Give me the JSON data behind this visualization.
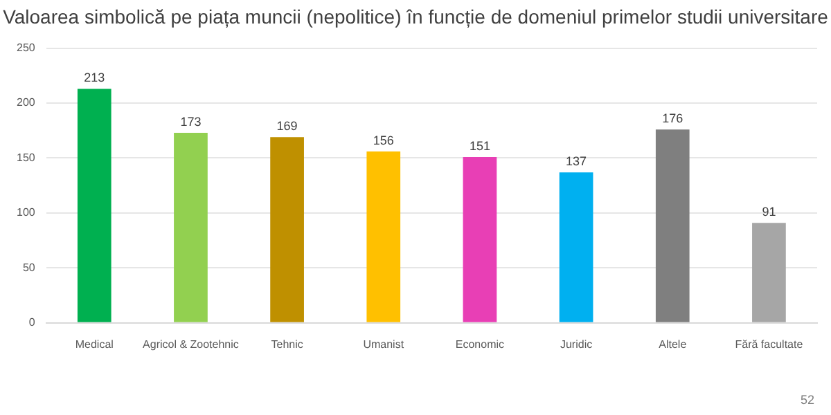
{
  "chart_data": {
    "type": "bar",
    "title": "Valoarea simbolică pe piața muncii (nepolitice) în funcție de domeniul primelor studii universitare",
    "categories": [
      "Medical",
      "Agricol & Zootehnic",
      "Tehnic",
      "Umanist",
      "Economic",
      "Juridic",
      "Altele",
      "Fără facultate"
    ],
    "values": [
      213,
      173,
      169,
      156,
      151,
      137,
      176,
      91
    ],
    "colors": [
      "#00b050",
      "#92d050",
      "#bf9000",
      "#ffc000",
      "#e83fb5",
      "#00b0f0",
      "#7f7f7f",
      "#a6a6a6"
    ],
    "ylim": [
      0,
      250
    ],
    "yticks": [
      0,
      50,
      100,
      150,
      200,
      250
    ],
    "grid": "y",
    "data_labels": true,
    "annotations": [
      "52"
    ]
  }
}
